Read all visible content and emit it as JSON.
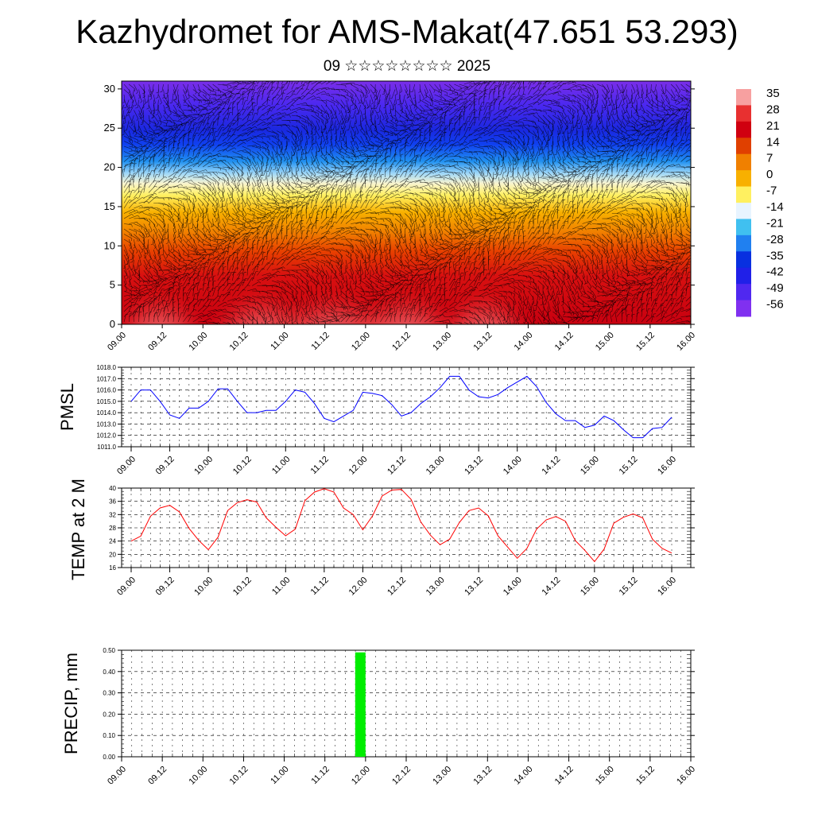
{
  "title": "Kazhydromet for AMS-Makat(47.651 53.293)",
  "subtitle": "09 ☆☆☆☆☆☆☆☆ 2025",
  "chart_data": [
    {
      "type": "heatmap",
      "name": "temperature-wind-cross-section",
      "x_ticks": [
        "09.00",
        "09.12",
        "10.00",
        "10.12",
        "11.00",
        "11.12",
        "12.00",
        "12.12",
        "13.00",
        "13.12",
        "14.00",
        "14.12",
        "15.00",
        "15.12",
        "16.00"
      ],
      "y_ticks": [
        "0",
        "5",
        "10",
        "15",
        "20",
        "25",
        "30"
      ],
      "ylim": [
        0,
        31
      ],
      "colorbar": {
        "labels": [
          "35",
          "28",
          "21",
          "14",
          "7",
          "0",
          "-7",
          "-14",
          "-21",
          "-28",
          "-35",
          "-42",
          "-49",
          "-56"
        ],
        "colors": [
          "#f7a0a0",
          "#e83030",
          "#d00010",
          "#e04000",
          "#f08000",
          "#f8b000",
          "#fff060",
          "#e8f4ff",
          "#40c0f0",
          "#2080f0",
          "#0830e0",
          "#2020e8",
          "#5028f0",
          "#8030f0"
        ]
      }
    },
    {
      "type": "line",
      "name": "pmsl",
      "ylabel": "PMSL",
      "x": [
        "09.00",
        "09.03",
        "09.06",
        "09.09",
        "09.12",
        "09.15",
        "09.18",
        "09.21",
        "10.00",
        "10.03",
        "10.06",
        "10.09",
        "10.12",
        "10.15",
        "10.18",
        "10.21",
        "11.00",
        "11.03",
        "11.06",
        "11.09",
        "11.12",
        "11.15",
        "11.18",
        "11.21",
        "12.00",
        "12.03",
        "12.06",
        "12.09",
        "12.12",
        "12.15",
        "12.18",
        "12.21",
        "13.00",
        "13.03",
        "13.06",
        "13.09",
        "13.12",
        "13.15",
        "13.18",
        "13.21",
        "14.00",
        "14.03",
        "14.06",
        "14.09",
        "14.12",
        "14.15",
        "14.18",
        "14.21",
        "15.00",
        "15.03",
        "15.06",
        "15.09",
        "15.12",
        "15.15",
        "15.18",
        "15.21",
        "16.00"
      ],
      "y": [
        1015.0,
        1016.0,
        1016.0,
        1015.0,
        1013.8,
        1013.5,
        1014.4,
        1014.4,
        1015.0,
        1016.1,
        1016.1,
        1015.0,
        1014.0,
        1014.0,
        1014.2,
        1014.2,
        1015.0,
        1016.0,
        1015.8,
        1014.8,
        1013.5,
        1013.2,
        1013.7,
        1014.2,
        1015.8,
        1015.7,
        1015.5,
        1014.7,
        1013.7,
        1014.0,
        1014.8,
        1015.4,
        1016.2,
        1017.2,
        1017.2,
        1016.0,
        1015.4,
        1015.3,
        1015.6,
        1016.2,
        1016.7,
        1017.2,
        1016.3,
        1014.9,
        1013.9,
        1013.3,
        1013.3,
        1012.7,
        1012.9,
        1013.7,
        1013.3,
        1012.5,
        1011.8,
        1011.8,
        1012.6,
        1012.7,
        1013.6
      ],
      "ylim": [
        1011.0,
        1018.0
      ],
      "y_ticks": [
        "1011.0",
        "1012.0",
        "1013.0",
        "1014.0",
        "1015.0",
        "1016.0",
        "1017.0",
        "1018.0"
      ],
      "x_ticks": [
        "09.00",
        "09.12",
        "10.00",
        "10.12",
        "11.00",
        "11.12",
        "12.00",
        "12.12",
        "13.00",
        "13.12",
        "14.00",
        "14.12",
        "15.00",
        "15.12",
        "16.00"
      ],
      "color": "#0000ff"
    },
    {
      "type": "line",
      "name": "temp-2m",
      "ylabel": "TEMP at 2 M",
      "x": [
        "09.00",
        "09.03",
        "09.06",
        "09.09",
        "09.12",
        "09.15",
        "09.18",
        "09.21",
        "10.00",
        "10.03",
        "10.06",
        "10.09",
        "10.12",
        "10.15",
        "10.18",
        "10.21",
        "11.00",
        "11.03",
        "11.06",
        "11.09",
        "11.12",
        "11.15",
        "11.18",
        "11.21",
        "12.00",
        "12.03",
        "12.06",
        "12.09",
        "12.12",
        "12.15",
        "12.18",
        "12.21",
        "13.00",
        "13.03",
        "13.06",
        "13.09",
        "13.12",
        "13.15",
        "13.18",
        "13.21",
        "14.00",
        "14.03",
        "14.06",
        "14.09",
        "14.12",
        "14.15",
        "14.18",
        "14.21",
        "15.00",
        "15.03",
        "15.06",
        "15.09",
        "15.12",
        "15.15",
        "15.18",
        "15.21",
        "16.00"
      ],
      "y": [
        24.0,
        25.5,
        31.5,
        34.0,
        34.8,
        32.8,
        27.8,
        24.2,
        21.4,
        25.2,
        33.2,
        35.6,
        36.5,
        35.8,
        31.0,
        28.2,
        25.6,
        27.6,
        36.2,
        38.8,
        39.8,
        38.8,
        34.0,
        32.0,
        27.4,
        31.6,
        37.6,
        39.4,
        39.6,
        36.6,
        29.8,
        25.8,
        22.9,
        24.6,
        29.6,
        33.2,
        34.0,
        31.6,
        25.6,
        22.2,
        18.8,
        21.8,
        27.6,
        30.4,
        31.4,
        30.0,
        24.2,
        21.2,
        17.8,
        21.6,
        29.4,
        31.2,
        32.2,
        31.0,
        24.6,
        21.8,
        20.4
      ],
      "ylim": [
        16,
        40
      ],
      "y_ticks": [
        "16",
        "20",
        "24",
        "28",
        "32",
        "36",
        "40"
      ],
      "x_ticks": [
        "09.00",
        "09.12",
        "10.00",
        "10.12",
        "11.00",
        "11.12",
        "12.00",
        "12.12",
        "13.00",
        "13.12",
        "14.00",
        "14.12",
        "15.00",
        "15.12",
        "16.00"
      ],
      "color": "#ff0000"
    },
    {
      "type": "bar",
      "name": "precip",
      "ylabel": "PRECIP, mm",
      "x": [
        "11.21"
      ],
      "y": [
        0.49
      ],
      "ylim": [
        0.0,
        0.5
      ],
      "y_ticks": [
        "0.00",
        "0.10",
        "0.20",
        "0.30",
        "0.40",
        "0.50"
      ],
      "x_ticks": [
        "09.00",
        "09.12",
        "10.00",
        "10.12",
        "11.00",
        "11.12",
        "12.00",
        "12.12",
        "13.00",
        "13.12",
        "14.00",
        "14.12",
        "15.00",
        "15.12",
        "16.00"
      ],
      "color": "#00ee00"
    }
  ]
}
